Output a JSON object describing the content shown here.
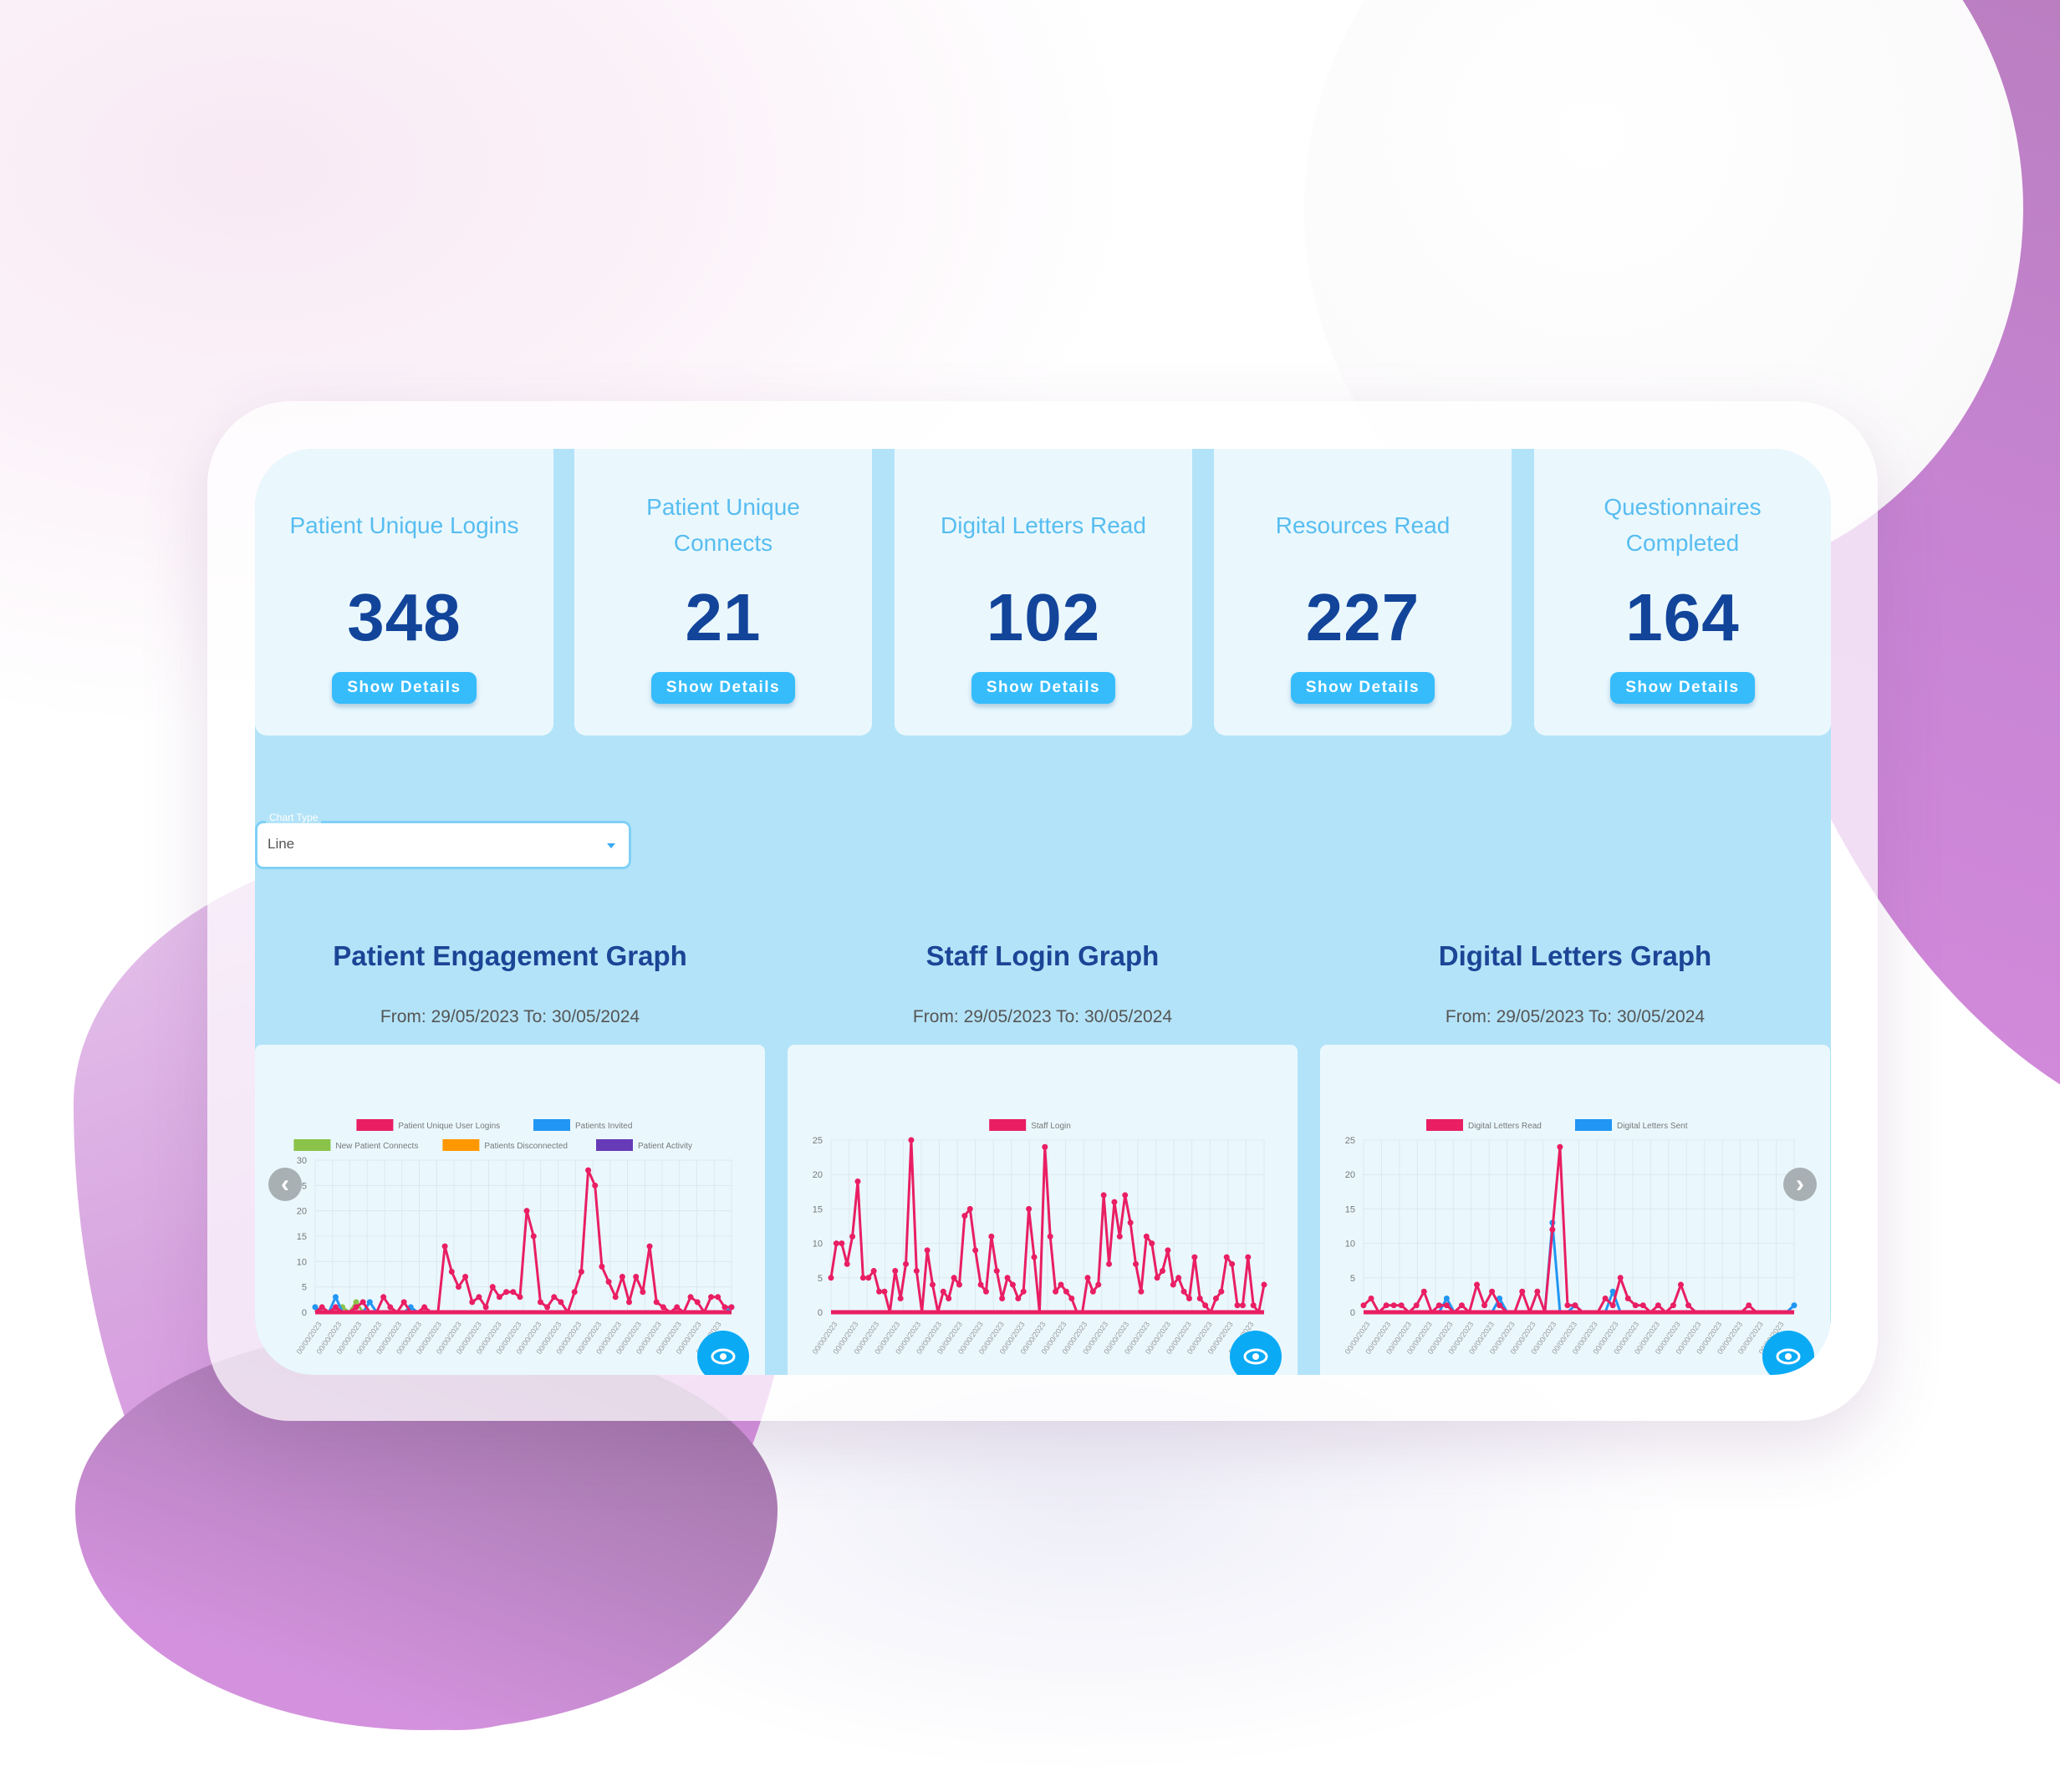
{
  "kpis": [
    {
      "title": "Patient Unique Logins",
      "value": "348",
      "button": "Show Details"
    },
    {
      "title": "Patient Unique Connects",
      "value": "21",
      "button": "Show Details"
    },
    {
      "title": "Digital Letters Read",
      "value": "102",
      "button": "Show Details"
    },
    {
      "title": "Resources Read",
      "value": "227",
      "button": "Show Details"
    },
    {
      "title": "Questionnaires Completed",
      "value": "164",
      "button": "Show Details"
    }
  ],
  "chart_type": {
    "label": "Chart Type",
    "value": "Line"
  },
  "graphs": [
    {
      "title": "Patient Engagement Graph",
      "subtitle": "From: 29/05/2023 To: 30/05/2024"
    },
    {
      "title": "Staff Login Graph",
      "subtitle": "From: 29/05/2023 To: 30/05/2024"
    },
    {
      "title": "Digital Letters Graph",
      "subtitle": "From: 29/05/2023 To: 30/05/2024"
    }
  ],
  "icons": {
    "prev": "chevron-left-icon",
    "next": "chevron-right-icon",
    "view": "eye-icon"
  },
  "colors": {
    "pink": "#e91e63",
    "blue": "#2196f3",
    "green": "#8bc34a",
    "orange": "#ff9800",
    "purple": "#673ab7",
    "kpi_value": "#12449a",
    "kpi_title": "#58bdf0",
    "button": "#36bcfb"
  },
  "chart_data": [
    {
      "type": "line",
      "title": "Patient Engagement Graph",
      "subtitle": "From: 29/05/2023 To: 30/05/2024",
      "legend": [
        "Patient Unique User Logins",
        "Patients Invited",
        "New Patient Connects",
        "Patients Disconnected",
        "Patient Activity"
      ],
      "legend_position": "top",
      "grid": true,
      "ylim": [
        0,
        30
      ],
      "yticks": [
        0,
        5,
        10,
        15,
        20,
        25,
        30
      ],
      "x_range": [
        "29/05/2023",
        "30/05/2024"
      ],
      "series": [
        {
          "name": "Patient Unique User Logins",
          "color": "#e91e63",
          "values": [
            0,
            1,
            0,
            1,
            0,
            0,
            1,
            2,
            0,
            0,
            3,
            1,
            0,
            2,
            0,
            0,
            1,
            0,
            0,
            13,
            8,
            5,
            7,
            2,
            3,
            1,
            5,
            3,
            4,
            4,
            3,
            20,
            15,
            2,
            1,
            3,
            2,
            0,
            4,
            8,
            28,
            25,
            9,
            6,
            3,
            7,
            2,
            7,
            4,
            13,
            2,
            1,
            0,
            1,
            0,
            3,
            2,
            0,
            3,
            3,
            1,
            1
          ]
        },
        {
          "name": "Patients Invited",
          "color": "#2196f3",
          "values": [
            1,
            0,
            0,
            3,
            0,
            0,
            0,
            0,
            2,
            0,
            0,
            0,
            0,
            0,
            1,
            0,
            0,
            0,
            0,
            0,
            0,
            0,
            0,
            0,
            0,
            0,
            0,
            0,
            0,
            0,
            0,
            0,
            0,
            0,
            0,
            0,
            0,
            0,
            0,
            0,
            0,
            0,
            0,
            0,
            0,
            0,
            0,
            0,
            0,
            0,
            0,
            0,
            0,
            0,
            0,
            0,
            0,
            0,
            0,
            0,
            0,
            1
          ]
        },
        {
          "name": "New Patient Connects",
          "color": "#8bc34a",
          "values": [
            1,
            0,
            0,
            0,
            1,
            0,
            2,
            0,
            0,
            0,
            0,
            0,
            0,
            0,
            0,
            0,
            0,
            0,
            0,
            0,
            0,
            0,
            0,
            0,
            0,
            0,
            0,
            0,
            0,
            0,
            0,
            0,
            0,
            0,
            0,
            0,
            0,
            0,
            0,
            0,
            0,
            0,
            0,
            0,
            0,
            0,
            0,
            0,
            0,
            0,
            0,
            0,
            0,
            0,
            0,
            0,
            0,
            0,
            0,
            0,
            0,
            0
          ]
        },
        {
          "name": "Patients Disconnected",
          "color": "#ff9800",
          "values": [
            0,
            0,
            0,
            0,
            0,
            0,
            0,
            0,
            0,
            0,
            0,
            0,
            0,
            0,
            0,
            0,
            0,
            0,
            0,
            0,
            0,
            0,
            0,
            0,
            0,
            0,
            0,
            0,
            0,
            0,
            0,
            0,
            0,
            0,
            0,
            0,
            0,
            0,
            0,
            0,
            0,
            0,
            0,
            0,
            0,
            0,
            0,
            0,
            0,
            0,
            0,
            0,
            0,
            0,
            0,
            0,
            0,
            0,
            0,
            0,
            0,
            0
          ]
        },
        {
          "name": "Patient Activity",
          "color": "#673ab7",
          "values": [
            0,
            0,
            0,
            0,
            0,
            0,
            0,
            0,
            0,
            0,
            0,
            0,
            0,
            0,
            0,
            0,
            0,
            0,
            0,
            0,
            0,
            0,
            0,
            0,
            0,
            0,
            0,
            0,
            0,
            0,
            0,
            0,
            0,
            0,
            0,
            0,
            0,
            0,
            0,
            0,
            0,
            0,
            0,
            0,
            0,
            0,
            0,
            0,
            0,
            0,
            0,
            0,
            0,
            0,
            0,
            0,
            0,
            0,
            0,
            0,
            0,
            0
          ]
        }
      ]
    },
    {
      "type": "line",
      "title": "Staff Login Graph",
      "subtitle": "From: 29/05/2023 To: 30/05/2024",
      "legend": [
        "Staff Login"
      ],
      "legend_position": "top",
      "grid": true,
      "ylim": [
        0,
        25
      ],
      "yticks": [
        0,
        5,
        10,
        15,
        20,
        25
      ],
      "x_range": [
        "29/05/2023",
        "30/05/2024"
      ],
      "series": [
        {
          "name": "Staff Login",
          "color": "#e91e63",
          "values": [
            5,
            10,
            10,
            7,
            11,
            19,
            5,
            5,
            6,
            3,
            3,
            0,
            6,
            2,
            7,
            25,
            6,
            0,
            9,
            4,
            0,
            3,
            2,
            5,
            4,
            14,
            15,
            9,
            4,
            3,
            11,
            6,
            2,
            5,
            4,
            2,
            3,
            15,
            8,
            0,
            24,
            11,
            3,
            4,
            3,
            2,
            0,
            0,
            5,
            3,
            4,
            17,
            7,
            16,
            11,
            17,
            13,
            7,
            3,
            11,
            10,
            5,
            6,
            9,
            4,
            5,
            3,
            2,
            8,
            2,
            1,
            0,
            2,
            3,
            8,
            7,
            1,
            1,
            8,
            1,
            0,
            4
          ]
        }
      ]
    },
    {
      "type": "line",
      "title": "Digital Letters Graph",
      "subtitle": "From: 29/05/2023 To: 30/05/2024",
      "legend": [
        "Digital Letters Read",
        "Digital Letters Sent"
      ],
      "legend_position": "top",
      "grid": true,
      "ylim": [
        0,
        25
      ],
      "yticks": [
        0,
        5,
        10,
        15,
        20,
        25
      ],
      "x_range": [
        "29/05/2023",
        "30/05/2024"
      ],
      "series": [
        {
          "name": "Digital Letters Read",
          "color": "#e91e63",
          "values": [
            1,
            2,
            0,
            1,
            1,
            1,
            0,
            1,
            3,
            0,
            1,
            1,
            0,
            1,
            0,
            4,
            1,
            3,
            1,
            0,
            0,
            3,
            0,
            3,
            0,
            12,
            24,
            1,
            1,
            0,
            0,
            0,
            2,
            1,
            5,
            2,
            1,
            1,
            0,
            1,
            0,
            1,
            4,
            1,
            0,
            0,
            0,
            0,
            0,
            0,
            0,
            1,
            0,
            0,
            0,
            0,
            0,
            0
          ]
        },
        {
          "name": "Digital Letters Sent",
          "color": "#2196f3",
          "values": [
            0,
            0,
            0,
            0,
            0,
            0,
            0,
            0,
            0,
            0,
            0,
            2,
            0,
            0,
            0,
            0,
            0,
            0,
            2,
            0,
            0,
            0,
            0,
            0,
            0,
            13,
            0,
            0,
            1,
            0,
            0,
            0,
            0,
            3,
            0,
            0,
            0,
            0,
            0,
            0,
            0,
            0,
            0,
            0,
            0,
            0,
            0,
            0,
            0,
            0,
            0,
            0,
            0,
            0,
            0,
            0,
            0,
            1
          ]
        }
      ]
    }
  ]
}
